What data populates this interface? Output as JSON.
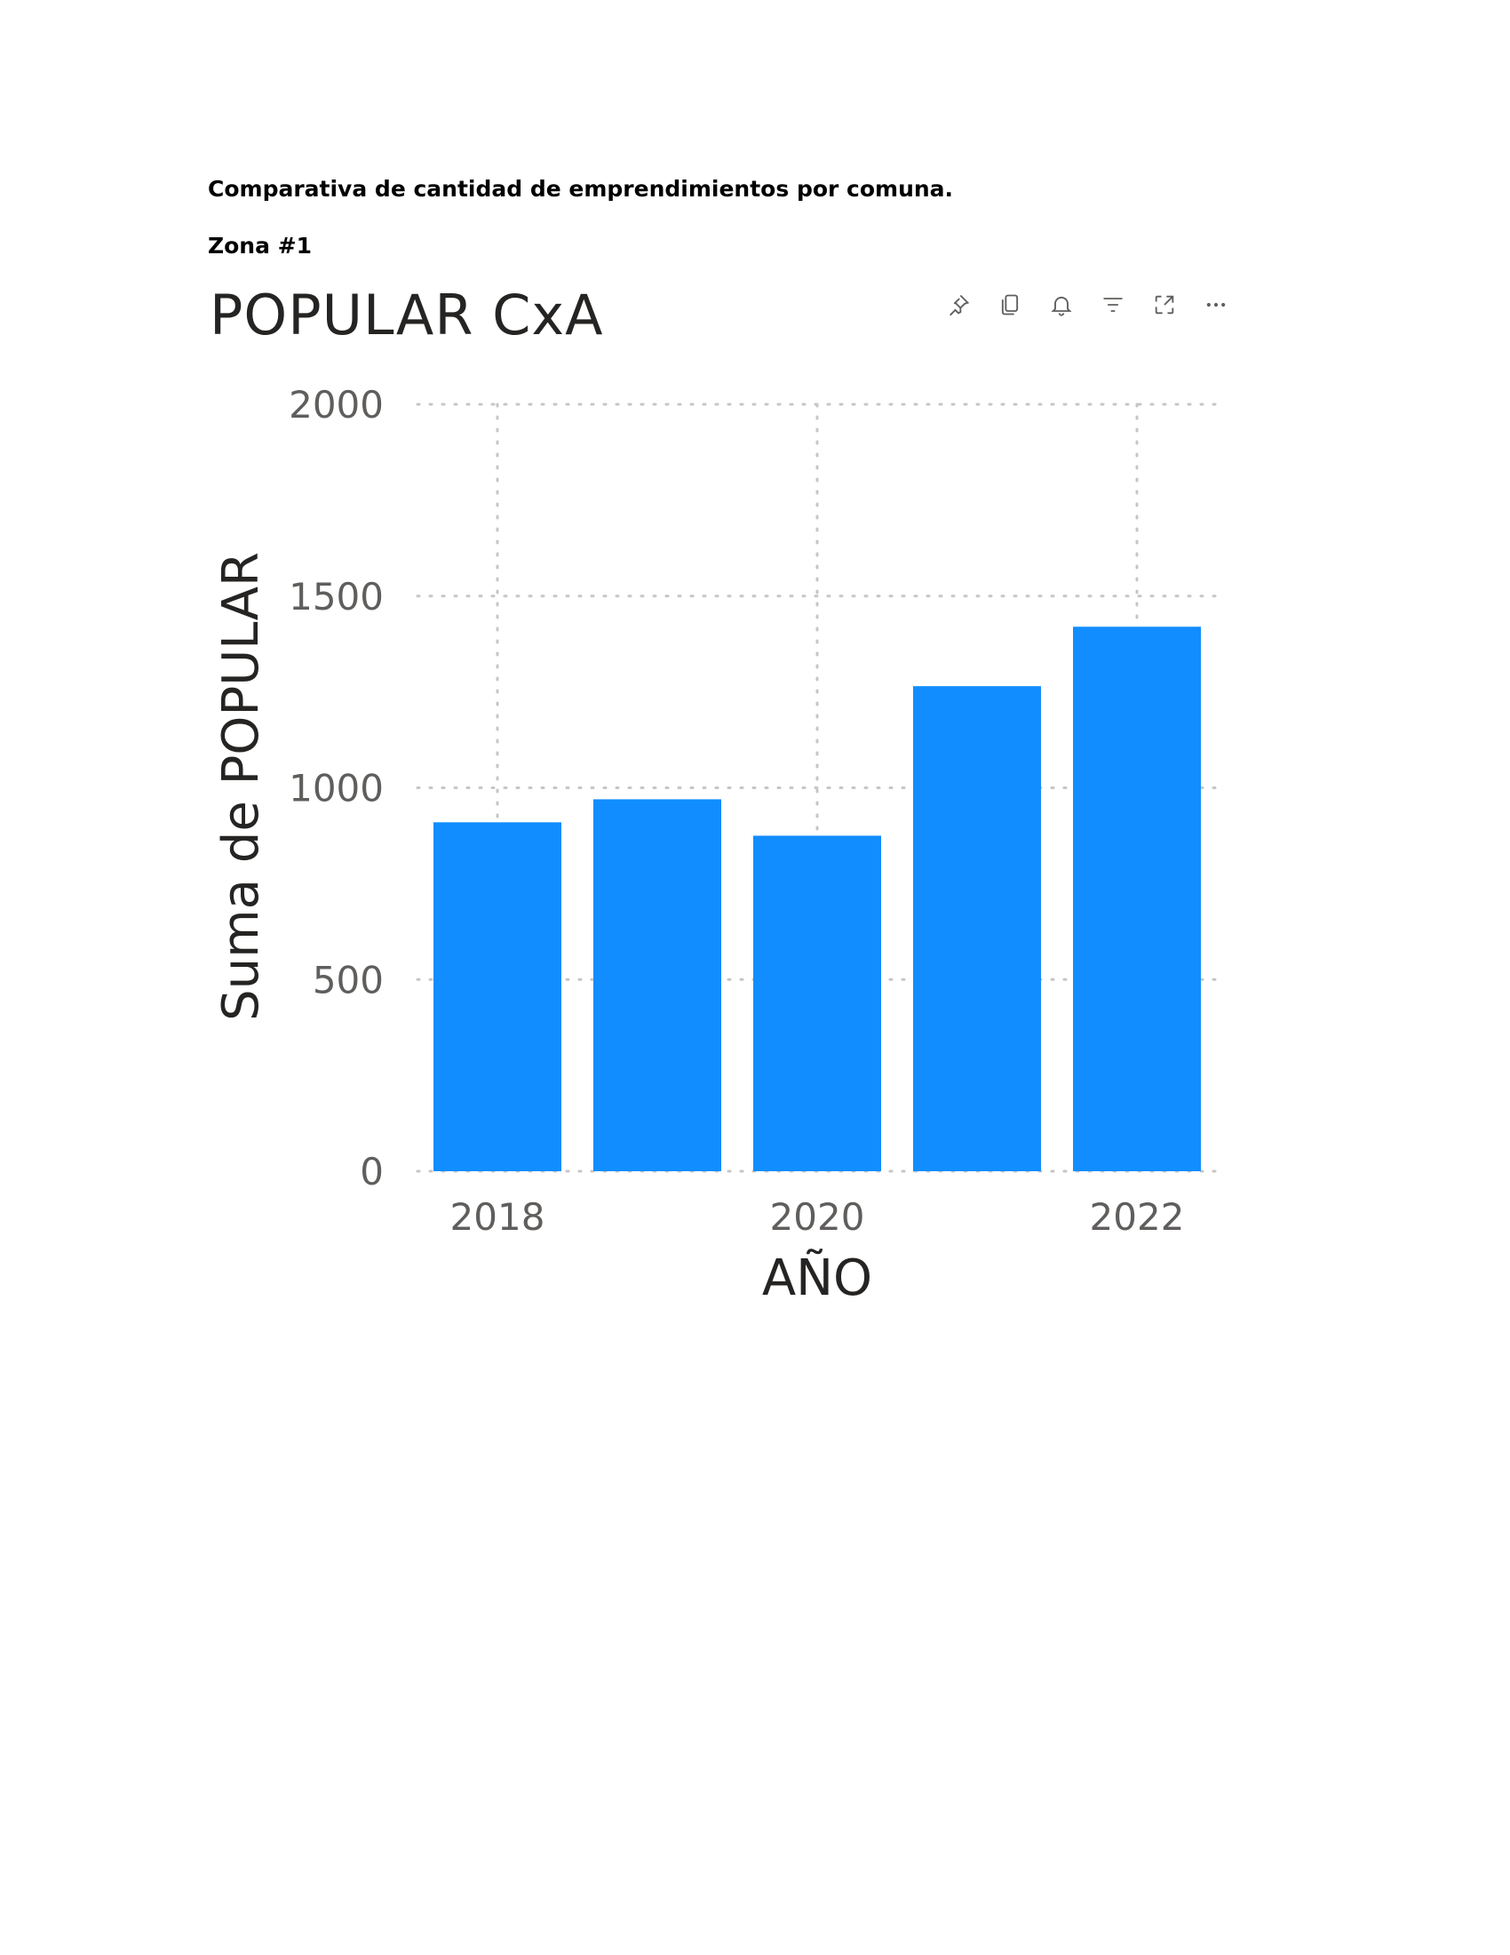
{
  "document": {
    "heading": "Comparativa de cantidad de emprendimientos por comuna.",
    "zone_label": "Zona #1"
  },
  "visual": {
    "title": "POPULAR CxA",
    "toolbar_icons": [
      "pin-icon",
      "copy-icon",
      "bell-icon",
      "filter-icon",
      "focus-mode-icon",
      "more-options-icon"
    ]
  },
  "chart_data": {
    "type": "bar",
    "x": [
      2018,
      2019,
      2020,
      2021,
      2022
    ],
    "x_tick_labels": [
      "2018",
      "2020",
      "2022"
    ],
    "values": [
      910,
      970,
      875,
      1265,
      1420
    ],
    "xlabel": "AÑO",
    "ylabel": "Suma de POPULAR",
    "ylim": [
      0,
      2000
    ],
    "y_ticks": [
      0,
      500,
      1000,
      1500,
      2000
    ],
    "grid": true,
    "bar_color": "#118dff"
  }
}
